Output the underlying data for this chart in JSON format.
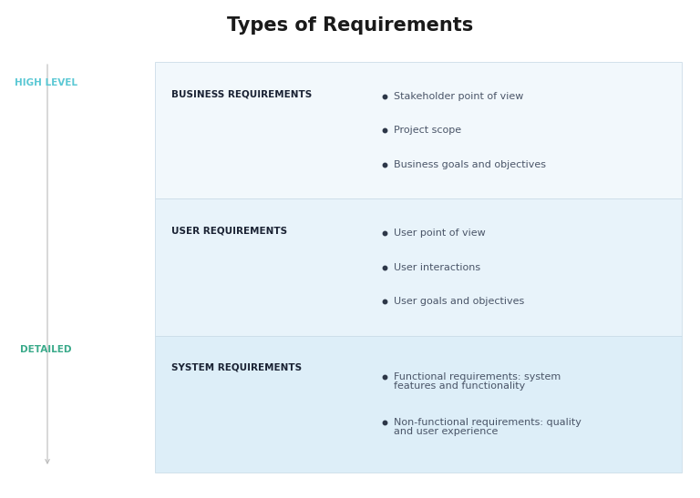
{
  "title": "Types of Requirements",
  "title_fontsize": 15,
  "title_fontweight": "bold",
  "title_color": "#1a1a1a",
  "background_color": "#ffffff",
  "sidebar_label_high": "HIGH LEVEL",
  "sidebar_label_detailed": "DETAILED",
  "sidebar_label_high_color": "#5bc8d4",
  "sidebar_label_detailed_color": "#3aaa8a",
  "sidebar_label_fontsize": 7.5,
  "rows": [
    {
      "heading": "BUSINESS REQUIREMENTS",
      "bullets": [
        [
          "Stakeholder point of view"
        ],
        [
          "Project scope"
        ],
        [
          "Business goals and objectives"
        ]
      ],
      "bg_color": "#f2f8fc",
      "border_color": "#ccdde8"
    },
    {
      "heading": "USER REQUIREMENTS",
      "bullets": [
        [
          "User point of view"
        ],
        [
          "User interactions"
        ],
        [
          "User goals and objectives"
        ]
      ],
      "bg_color": "#e8f3fa",
      "border_color": "#ccdde8"
    },
    {
      "heading": "SYSTEM REQUIREMENTS",
      "bullets": [
        [
          "Functional requirements: system",
          "features and functionality"
        ],
        [
          "Non-functional requirements: quality",
          "and user experience"
        ]
      ],
      "bg_color": "#ddeef8",
      "border_color": "#ccdde8"
    }
  ],
  "heading_fontsize": 7.5,
  "heading_color": "#1a2233",
  "bullet_fontsize": 8,
  "bullet_color": "#4a5568",
  "bullet_dot_color": "#2d3748"
}
